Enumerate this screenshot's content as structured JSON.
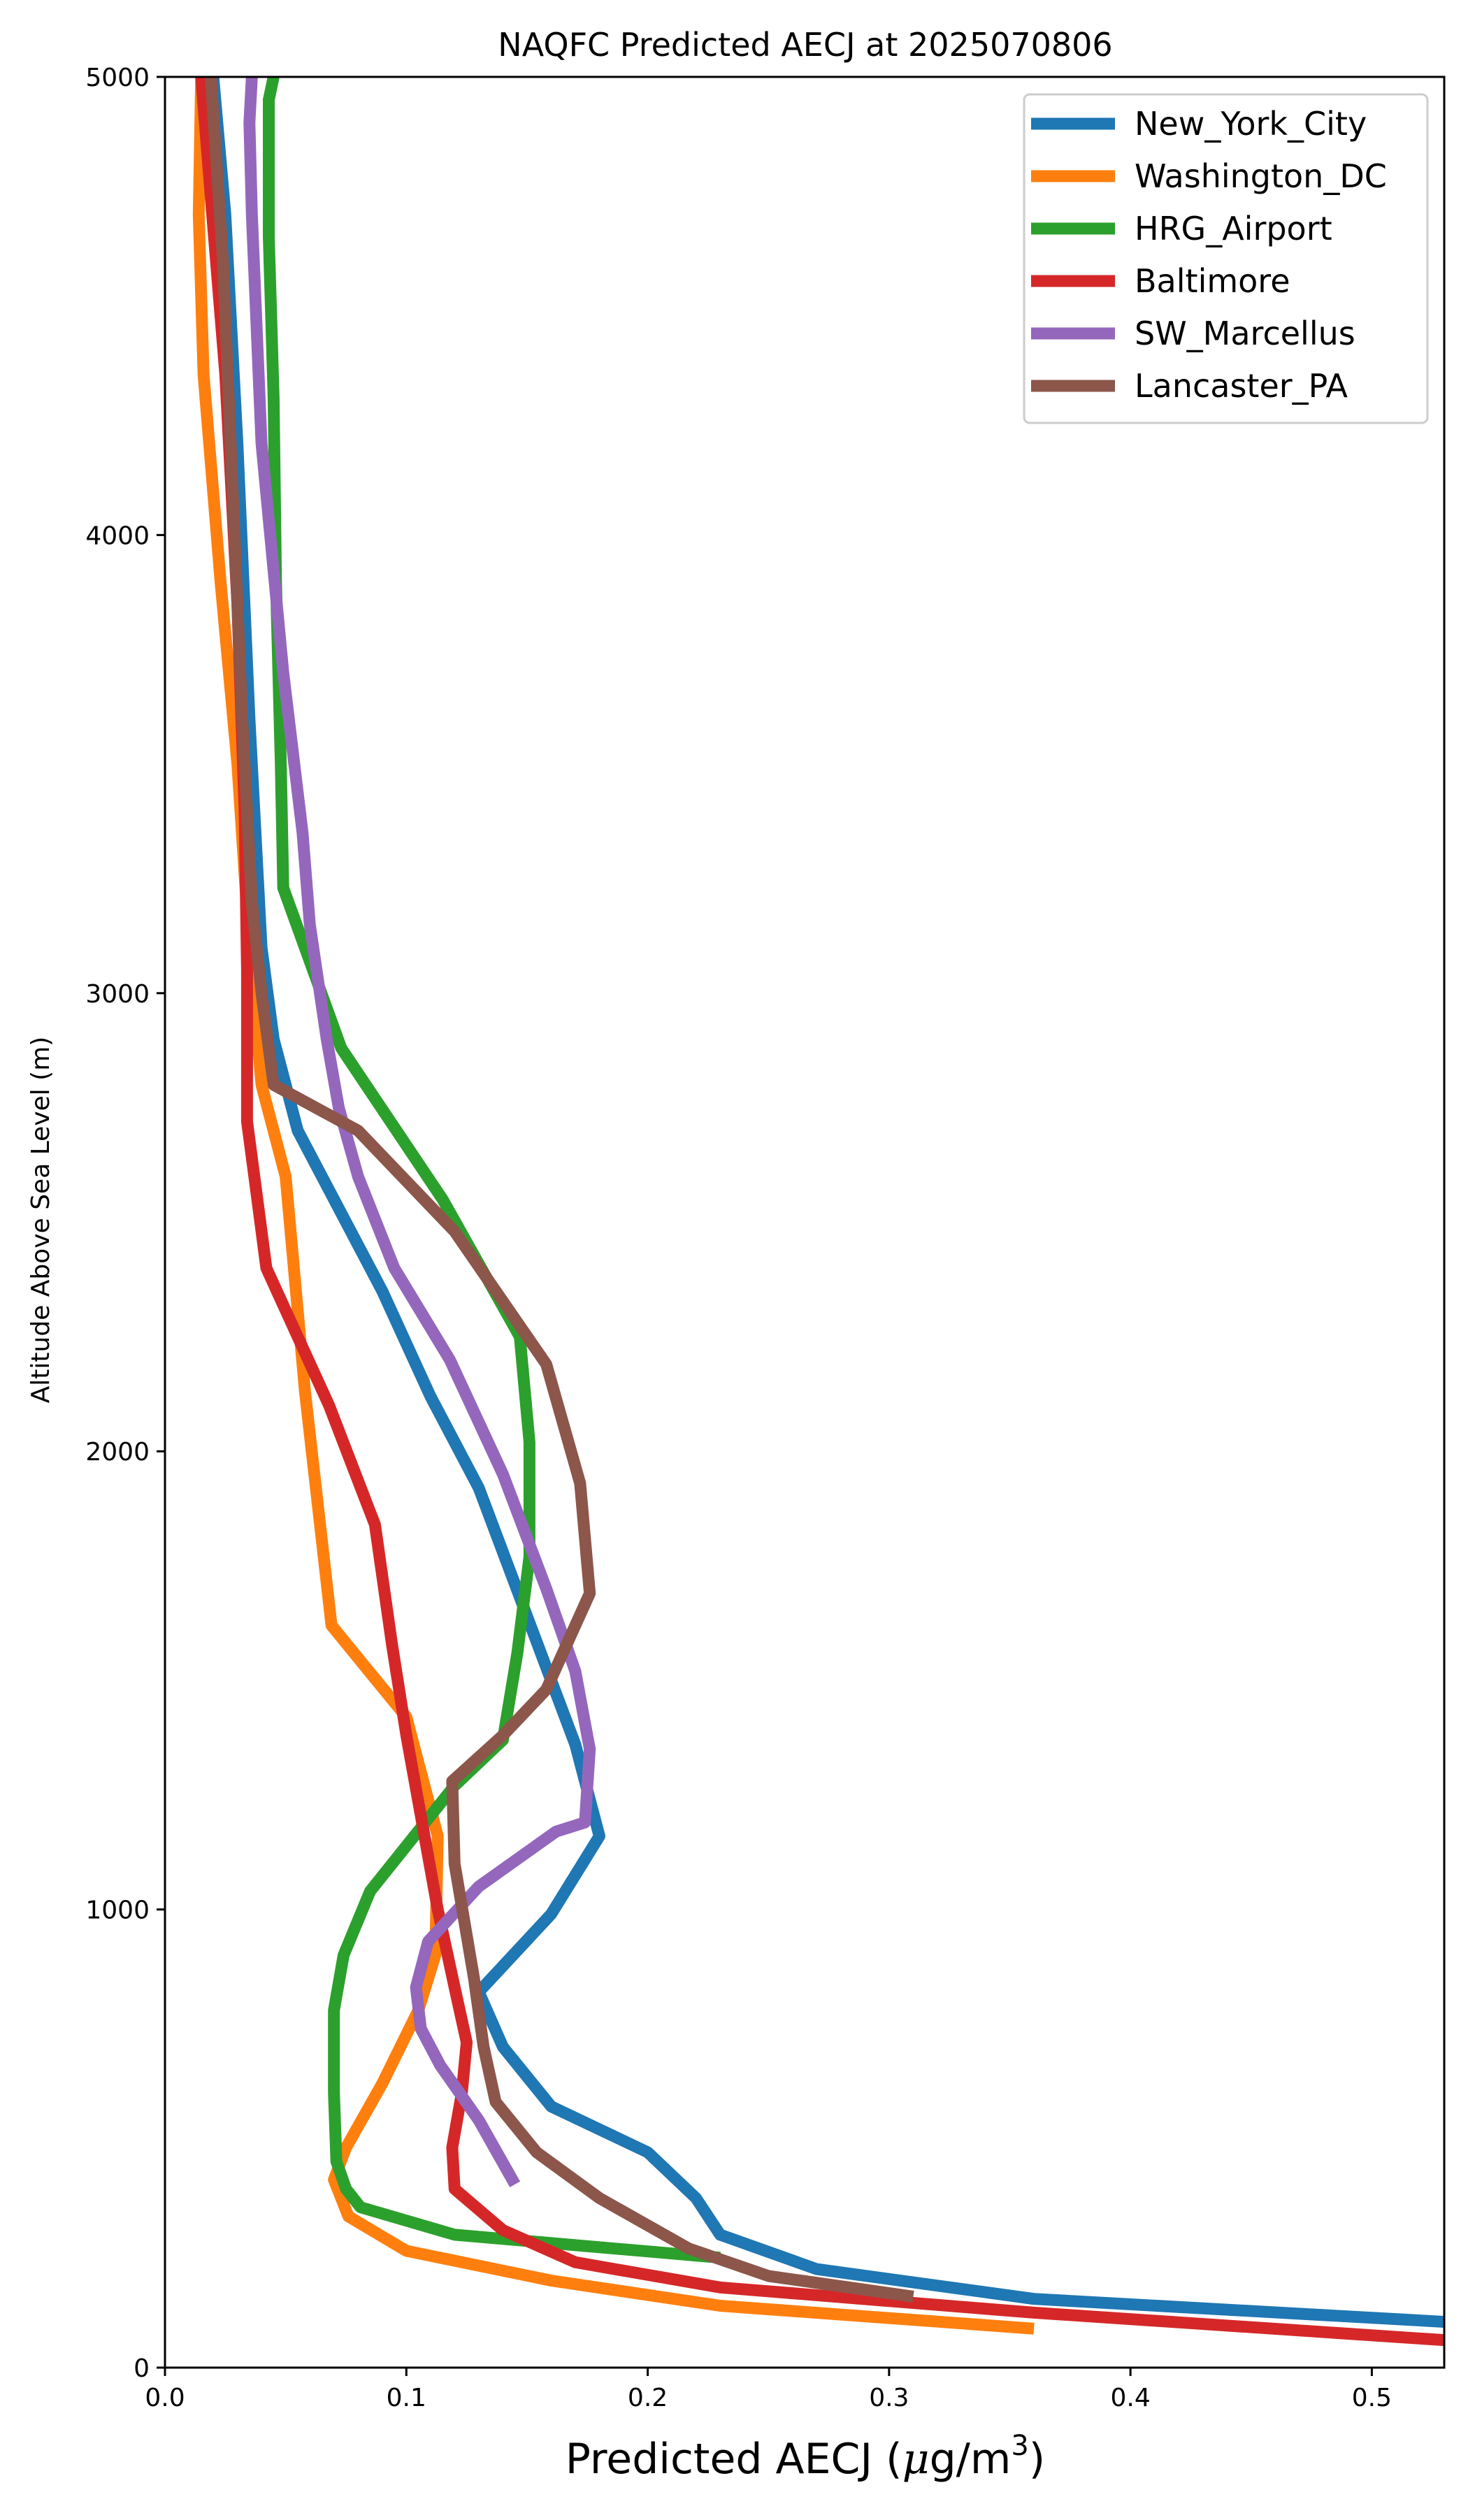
{
  "chart_data": {
    "type": "line",
    "title": "NAQFC Predicted AECJ at 2025070806",
    "xlabel_prefix": "Predicted AECJ (",
    "xlabel_mu": "μ",
    "xlabel_unit": "g/m",
    "xlabel_sup": "3",
    "xlabel_suffix": ")",
    "ylabel": "Altitude Above Sea Level (m)",
    "xlim": [
      0,
      0.53
    ],
    "ylim": [
      0,
      5000
    ],
    "x_ticks": [
      0.0,
      0.1,
      0.2,
      0.3,
      0.4,
      0.5
    ],
    "x_tick_labels": [
      "0.0",
      "0.1",
      "0.2",
      "0.3",
      "0.4",
      "0.5"
    ],
    "y_ticks": [
      0,
      1000,
      2000,
      3000,
      4000,
      5000
    ],
    "y_tick_labels": [
      "0",
      "1000",
      "2000",
      "3000",
      "4000",
      "5000"
    ],
    "grid": false,
    "legend_position": "top-right",
    "series": [
      {
        "name": "New_York_City",
        "color": "#1f77b4",
        "points": [
          [
            0.53,
            100
          ],
          [
            0.36,
            150
          ],
          [
            0.27,
            215
          ],
          [
            0.23,
            290
          ],
          [
            0.22,
            370
          ],
          [
            0.2,
            470
          ],
          [
            0.16,
            570
          ],
          [
            0.14,
            700
          ],
          [
            0.13,
            820
          ],
          [
            0.16,
            990
          ],
          [
            0.18,
            1160
          ],
          [
            0.17,
            1360
          ],
          [
            0.15,
            1640
          ],
          [
            0.13,
            1920
          ],
          [
            0.11,
            2120
          ],
          [
            0.09,
            2350
          ],
          [
            0.07,
            2550
          ],
          [
            0.055,
            2700
          ],
          [
            0.045,
            2900
          ],
          [
            0.04,
            3100
          ],
          [
            0.035,
            3600
          ],
          [
            0.03,
            4200
          ],
          [
            0.025,
            4700
          ],
          [
            0.02,
            5000
          ]
        ]
      },
      {
        "name": "Washington_DC",
        "color": "#ff7f0e",
        "points": [
          [
            0.36,
            85
          ],
          [
            0.23,
            135
          ],
          [
            0.16,
            190
          ],
          [
            0.1,
            255
          ],
          [
            0.076,
            330
          ],
          [
            0.07,
            410
          ],
          [
            0.075,
            480
          ],
          [
            0.09,
            620
          ],
          [
            0.105,
            780
          ],
          [
            0.112,
            900
          ],
          [
            0.113,
            1160
          ],
          [
            0.1,
            1420
          ],
          [
            0.069,
            1620
          ],
          [
            0.058,
            2130
          ],
          [
            0.05,
            2600
          ],
          [
            0.04,
            2800
          ],
          [
            0.035,
            3100
          ],
          [
            0.03,
            3500
          ],
          [
            0.023,
            3900
          ],
          [
            0.016,
            4350
          ],
          [
            0.014,
            4700
          ],
          [
            0.015,
            5000
          ]
        ]
      },
      {
        "name": "HRG_Airport",
        "color": "#2ca02c",
        "points": [
          [
            0.23,
            240
          ],
          [
            0.12,
            290
          ],
          [
            0.081,
            350
          ],
          [
            0.075,
            390
          ],
          [
            0.071,
            450
          ],
          [
            0.07,
            600
          ],
          [
            0.07,
            780
          ],
          [
            0.074,
            900
          ],
          [
            0.085,
            1040
          ],
          [
            0.12,
            1270
          ],
          [
            0.14,
            1370
          ],
          [
            0.146,
            1560
          ],
          [
            0.151,
            1770
          ],
          [
            0.151,
            2020
          ],
          [
            0.147,
            2250
          ],
          [
            0.115,
            2550
          ],
          [
            0.073,
            2880
          ],
          [
            0.049,
            3230
          ],
          [
            0.048,
            3500
          ],
          [
            0.046,
            3900
          ],
          [
            0.045,
            4300
          ],
          [
            0.043,
            4650
          ],
          [
            0.043,
            4950
          ],
          [
            0.045,
            5000
          ]
        ]
      },
      {
        "name": "Baltimore",
        "color": "#d62728",
        "points": [
          [
            0.53,
            60
          ],
          [
            0.36,
            120
          ],
          [
            0.23,
            175
          ],
          [
            0.17,
            230
          ],
          [
            0.14,
            300
          ],
          [
            0.12,
            390
          ],
          [
            0.119,
            480
          ],
          [
            0.123,
            600
          ],
          [
            0.125,
            710
          ],
          [
            0.12,
            830
          ],
          [
            0.113,
            1000
          ],
          [
            0.1,
            1380
          ],
          [
            0.094,
            1580
          ],
          [
            0.087,
            1840
          ],
          [
            0.068,
            2100
          ],
          [
            0.042,
            2400
          ],
          [
            0.037,
            2600
          ],
          [
            0.034,
            2720
          ],
          [
            0.034,
            3050
          ],
          [
            0.033,
            3400
          ],
          [
            0.03,
            3850
          ],
          [
            0.025,
            4350
          ],
          [
            0.018,
            4800
          ],
          [
            0.015,
            5000
          ]
        ]
      },
      {
        "name": "SW_Marcellus",
        "color": "#9467bd",
        "points": [
          [
            0.145,
            400
          ],
          [
            0.13,
            540
          ],
          [
            0.114,
            660
          ],
          [
            0.106,
            740
          ],
          [
            0.104,
            830
          ],
          [
            0.109,
            930
          ],
          [
            0.13,
            1050
          ],
          [
            0.162,
            1170
          ],
          [
            0.174,
            1190
          ],
          [
            0.176,
            1350
          ],
          [
            0.17,
            1520
          ],
          [
            0.158,
            1700
          ],
          [
            0.14,
            1950
          ],
          [
            0.118,
            2200
          ],
          [
            0.095,
            2400
          ],
          [
            0.08,
            2600
          ],
          [
            0.072,
            2750
          ],
          [
            0.067,
            2900
          ],
          [
            0.06,
            3150
          ],
          [
            0.057,
            3350
          ],
          [
            0.049,
            3700
          ],
          [
            0.04,
            4200
          ],
          [
            0.036,
            4700
          ],
          [
            0.035,
            4900
          ],
          [
            0.036,
            5000
          ]
        ]
      },
      {
        "name": "Lancaster_PA",
        "color": "#8c564b",
        "points": [
          [
            0.31,
            155
          ],
          [
            0.25,
            200
          ],
          [
            0.217,
            260
          ],
          [
            0.18,
            370
          ],
          [
            0.154,
            470
          ],
          [
            0.137,
            580
          ],
          [
            0.132,
            700
          ],
          [
            0.128,
            850
          ],
          [
            0.12,
            1100
          ],
          [
            0.119,
            1280
          ],
          [
            0.14,
            1380
          ],
          [
            0.158,
            1480
          ],
          [
            0.176,
            1690
          ],
          [
            0.172,
            1930
          ],
          [
            0.158,
            2190
          ],
          [
            0.12,
            2480
          ],
          [
            0.08,
            2700
          ],
          [
            0.045,
            2800
          ],
          [
            0.04,
            3000
          ],
          [
            0.036,
            3200
          ],
          [
            0.032,
            3600
          ],
          [
            0.028,
            4100
          ],
          [
            0.024,
            4600
          ],
          [
            0.019,
            5000
          ]
        ]
      }
    ]
  }
}
